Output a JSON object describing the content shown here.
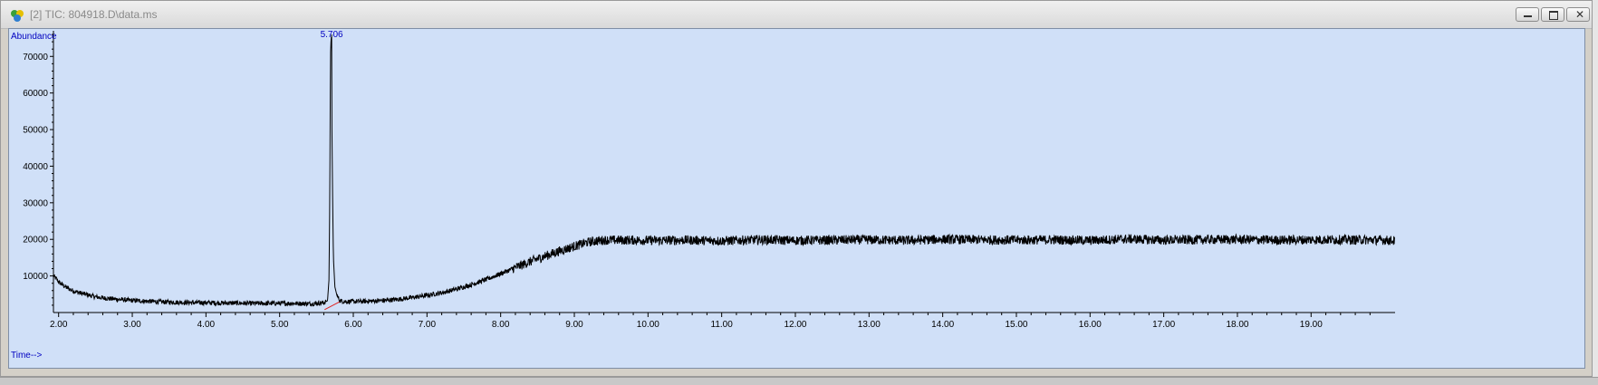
{
  "window": {
    "title": "[2] TIC: 804918.D\\data.ms",
    "icon": "chromatogram-app-icon",
    "buttons": [
      "minimize",
      "restore",
      "close"
    ]
  },
  "colors": {
    "plot_bg": "#d0e0f8",
    "trace": "#000000",
    "axis_text": "#0000c0",
    "baseline_marker": "#e02020"
  },
  "chart_data": {
    "type": "line",
    "title": "",
    "ylabel": "Abundance",
    "xlabel": "Time-->",
    "xlim": [
      1.93,
      20.14
    ],
    "ylim": [
      0,
      77000
    ],
    "x_ticks": [
      "2.00",
      "3.00",
      "4.00",
      "5.00",
      "6.00",
      "7.00",
      "8.00",
      "9.00",
      "10.00",
      "11.00",
      "12.00",
      "13.00",
      "14.00",
      "15.00",
      "16.00",
      "17.00",
      "18.00",
      "19.00"
    ],
    "y_ticks": [
      "10000",
      "20000",
      "30000",
      "40000",
      "50000",
      "60000",
      "70000"
    ],
    "grid": false,
    "legend": "none",
    "peak_labels": [
      {
        "label": "5.706",
        "x": 5.706,
        "y": 76500
      }
    ],
    "baseline_segment": {
      "x": [
        5.61,
        5.81
      ],
      "y": [
        800,
        2900
      ]
    },
    "series": [
      {
        "x": [
          1.93,
          1.97,
          2.0,
          2.05,
          2.1,
          2.2,
          2.3,
          2.4,
          2.5,
          2.6,
          2.8,
          3.0,
          3.2,
          3.4,
          3.6,
          3.8,
          4.0,
          4.2,
          4.4,
          4.6,
          4.8,
          5.0,
          5.2,
          5.4,
          5.5,
          5.6,
          5.65,
          5.67,
          5.68,
          5.69,
          5.7,
          5.706,
          5.71,
          5.72,
          5.73,
          5.75,
          5.78,
          5.82,
          5.9,
          6.0,
          6.2,
          6.4,
          6.6,
          6.8,
          7.0,
          7.2,
          7.4,
          7.6,
          7.8,
          8.0,
          8.2,
          8.4,
          8.6,
          8.8,
          9.0,
          9.2,
          9.4,
          9.6,
          9.8,
          10.0,
          10.5,
          11.0,
          11.5,
          12.0,
          12.5,
          13.0,
          13.5,
          14.0,
          14.5,
          15.0,
          15.5,
          16.0,
          16.5,
          17.0,
          17.5,
          18.0,
          18.5,
          19.0,
          19.5,
          20.0,
          20.14
        ],
        "y": [
          10000,
          9200,
          8400,
          7600,
          6900,
          5900,
          5300,
          4800,
          4300,
          4000,
          3600,
          3300,
          3100,
          2900,
          2800,
          2700,
          2700,
          2600,
          2600,
          2500,
          2500,
          2500,
          2500,
          2400,
          2500,
          2700,
          3200,
          9000,
          30000,
          70000,
          76000,
          72000,
          50000,
          30000,
          15000,
          7000,
          4500,
          3200,
          3000,
          3000,
          3100,
          3300,
          3600,
          4100,
          4700,
          5400,
          6400,
          7600,
          9000,
          10600,
          12300,
          13900,
          15400,
          16800,
          18100,
          19300,
          19800,
          19800,
          19800,
          19700,
          19800,
          19600,
          19900,
          19700,
          19800,
          19900,
          19700,
          20000,
          19900,
          19800,
          19900,
          19700,
          20100,
          19800,
          19900,
          20000,
          19800,
          19900,
          19900,
          19800,
          19600
        ]
      }
    ]
  }
}
